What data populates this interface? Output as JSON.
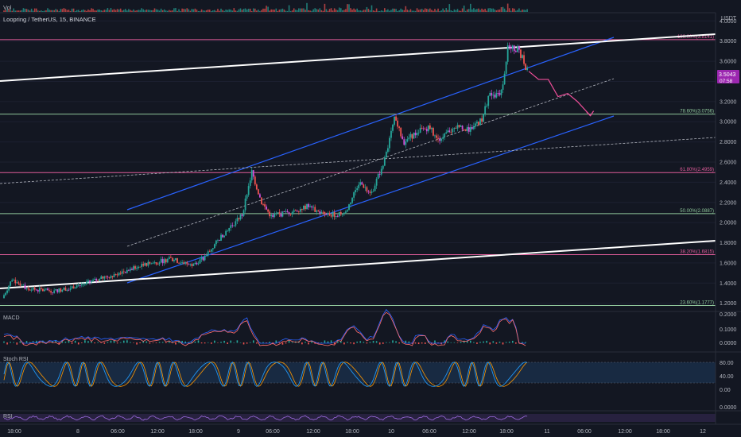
{
  "header": {
    "symbol_title": "Loopring / TetherUS, 15, BINANCE",
    "vol_label": "Vol",
    "currency": "USDT"
  },
  "price_tag": {
    "value": "3.5043",
    "countdown": "07:58"
  },
  "price_axis": {
    "ticks": [
      "4.0000",
      "3.8000",
      "3.6000",
      "3.4000",
      "3.2000",
      "3.0000",
      "2.8000",
      "2.6000",
      "2.4000",
      "2.2000",
      "2.0000",
      "1.8000",
      "1.6000",
      "1.4000",
      "1.2000"
    ]
  },
  "time_axis": {
    "ticks": [
      "18:00",
      "8",
      "06:00",
      "12:00",
      "18:00",
      "9",
      "06:00",
      "12:00",
      "18:00",
      "10",
      "06:00",
      "12:00",
      "18:00",
      "11",
      "06:00",
      "12:00",
      "18:00",
      "12"
    ]
  },
  "fib_levels": [
    {
      "label": "100.00%(3.8141)",
      "value": 3.8141,
      "color": "#e05c9a"
    },
    {
      "label": "78.60%(3.0756)",
      "value": 3.0756,
      "color": "#8fc79a"
    },
    {
      "label": "61.80%(2.4959)",
      "value": 2.4959,
      "color": "#e05c9a"
    },
    {
      "label": "50.00%(2.0887)",
      "value": 2.0887,
      "color": "#8fc79a"
    },
    {
      "label": "38.20%(1.6815)",
      "value": 1.6815,
      "color": "#e05c9a"
    },
    {
      "label": "23.60%(1.1777)",
      "value": 1.1777,
      "color": "#8fc79a"
    }
  ],
  "indicators": {
    "macd": {
      "label": "MACD",
      "ticks": [
        "0.2000",
        "0.1000",
        "0.0000"
      ]
    },
    "stoch": {
      "label": "Stoch RSI",
      "ticks": [
        "80.00",
        "40.00",
        "0.00"
      ]
    },
    "rsi": {
      "label": "RSI",
      "ticks": [
        "0.0000"
      ]
    }
  },
  "colors": {
    "background": "#131722",
    "up": "#26a69a",
    "down": "#ef5350",
    "wick_mix": "#d04fd8",
    "channel": "#2962ff",
    "trendline": "#ffffff",
    "projection": "#f04f9a",
    "macd_line": "#2962ff",
    "signal_line": "#ff6d6d",
    "stoch_k": "#2196f3",
    "stoch_d": "#ff9800"
  },
  "chart_data": {
    "type": "candlestick",
    "ylim": [
      1.15,
      4.05
    ],
    "x_hours": [
      0,
      108
    ],
    "anchors": [
      [
        0,
        1.25
      ],
      [
        1.5,
        1.44
      ],
      [
        4,
        1.34
      ],
      [
        8,
        1.32
      ],
      [
        12,
        1.38
      ],
      [
        17,
        1.48
      ],
      [
        22,
        1.58
      ],
      [
        26,
        1.64
      ],
      [
        29,
        1.58
      ],
      [
        31,
        1.64
      ],
      [
        34,
        1.88
      ],
      [
        37,
        2.08
      ],
      [
        38.5,
        2.5
      ],
      [
        40,
        2.2
      ],
      [
        41.5,
        2.06
      ],
      [
        44,
        2.1
      ],
      [
        47,
        2.16
      ],
      [
        50,
        2.07
      ],
      [
        53,
        2.1
      ],
      [
        55,
        2.4
      ],
      [
        57,
        2.3
      ],
      [
        59,
        2.62
      ],
      [
        60.5,
        3.02
      ],
      [
        62,
        2.8
      ],
      [
        64,
        2.9
      ],
      [
        66,
        2.95
      ],
      [
        67,
        2.82
      ],
      [
        70,
        2.95
      ],
      [
        72,
        2.92
      ],
      [
        74,
        3.02
      ],
      [
        75,
        3.25
      ],
      [
        77,
        3.3
      ],
      [
        78,
        3.72
      ],
      [
        79.5,
        3.72
      ],
      [
        80.5,
        3.6
      ],
      [
        81,
        3.5
      ]
    ],
    "projection_path": [
      [
        81,
        3.5
      ],
      [
        82.5,
        3.42
      ],
      [
        84,
        3.42
      ],
      [
        85.5,
        3.25
      ],
      [
        87,
        3.28
      ],
      [
        88.5,
        3.2
      ],
      [
        90.5,
        3.06
      ]
    ]
  }
}
